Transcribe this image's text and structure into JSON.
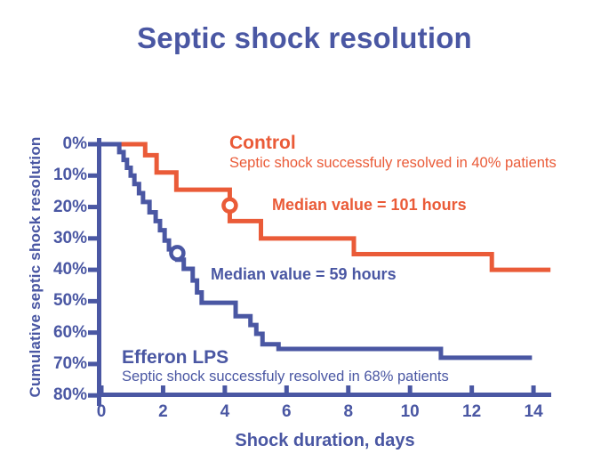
{
  "title": "Septic shock resolution",
  "colors": {
    "blue": "#4a57a3",
    "orange": "#ea5b38",
    "background": "#ffffff"
  },
  "chart_data": {
    "type": "line",
    "subtype": "kaplan-meier-step",
    "title": "Septic shock resolution",
    "xlabel": "Shock duration, days",
    "ylabel": "Cumulative septic shock resolution",
    "grid": false,
    "x_ticks": [
      0,
      2,
      4,
      6,
      8,
      10,
      12,
      14
    ],
    "y_tick_labels": [
      "0%",
      "10%",
      "20%",
      "30%",
      "40%",
      "50%",
      "60%",
      "70%",
      "80%"
    ],
    "y_tick_values": [
      0,
      10,
      20,
      30,
      40,
      50,
      60,
      70,
      80
    ],
    "xlim": [
      0,
      14.6
    ],
    "ylim": [
      0,
      80
    ],
    "y_axis_inverted": true,
    "series": [
      {
        "name": "Control",
        "label": "Control",
        "sublabel": "Septic shock successfuly resolved in 40% patients",
        "median_label": "Median value = 101 hours",
        "median_hours": 101,
        "resolved_percent": 40,
        "color": "#ea5b38",
        "median_point_day": 4.16,
        "median_point_percent": 19.5,
        "points": [
          [
            0.64,
            0
          ],
          [
            1.42,
            3.5
          ],
          [
            1.79,
            9
          ],
          [
            2.43,
            14.5
          ],
          [
            4.16,
            24.5
          ],
          [
            5.17,
            30
          ],
          [
            8.18,
            35
          ],
          [
            12.65,
            40
          ],
          [
            14.55,
            40
          ]
        ]
      },
      {
        "name": "Efferon LPS",
        "label": "Efferon LPS",
        "sublabel": "Septic shock successfuly resolved in 68% patients",
        "median_label": "Median value = 59 hours",
        "median_hours": 59,
        "resolved_percent": 68,
        "color": "#4a57a3",
        "median_point_day": 2.46,
        "median_point_percent": 34.7,
        "points": [
          [
            0,
            0
          ],
          [
            0.58,
            2.5
          ],
          [
            0.72,
            5
          ],
          [
            0.83,
            7.5
          ],
          [
            0.95,
            10
          ],
          [
            1.07,
            12.7
          ],
          [
            1.22,
            15.6
          ],
          [
            1.35,
            18.4
          ],
          [
            1.56,
            21.7
          ],
          [
            1.76,
            24.5
          ],
          [
            1.9,
            27.4
          ],
          [
            2.05,
            30.7
          ],
          [
            2.19,
            33.5
          ],
          [
            2.46,
            36.8
          ],
          [
            2.67,
            39.7
          ],
          [
            2.96,
            43.4
          ],
          [
            3.1,
            47.2
          ],
          [
            3.25,
            50.5
          ],
          [
            4.35,
            54.8
          ],
          [
            4.83,
            57.6
          ],
          [
            5.02,
            60.4
          ],
          [
            5.22,
            63.7
          ],
          [
            5.74,
            65.2
          ],
          [
            11.0,
            68
          ],
          [
            13.95,
            68
          ]
        ]
      }
    ]
  }
}
